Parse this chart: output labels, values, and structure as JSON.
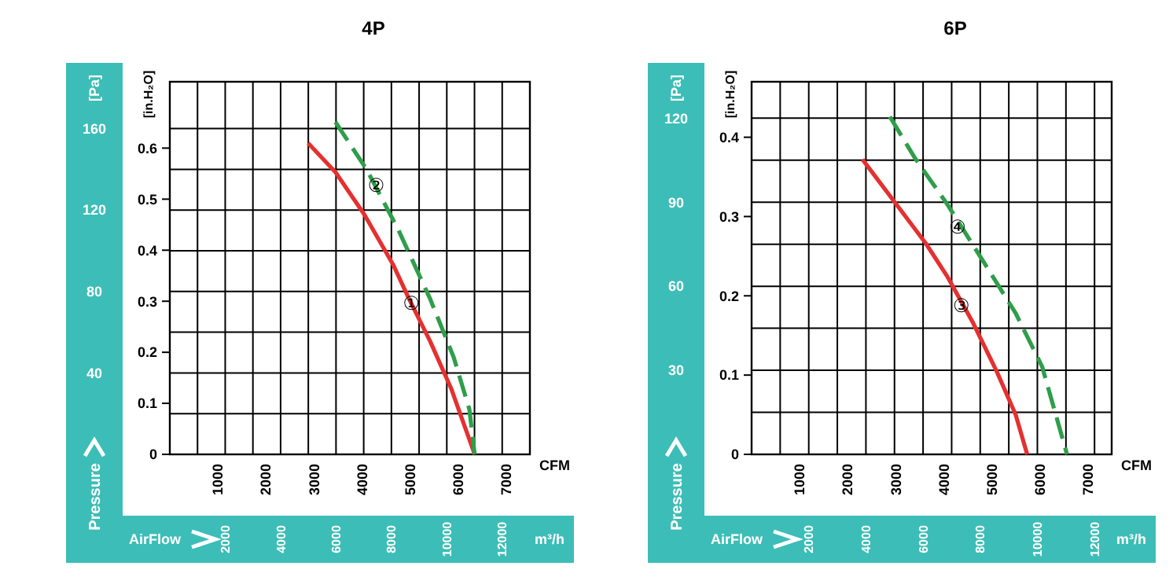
{
  "chart_data": [
    {
      "type": "line",
      "title": "4P",
      "xlabel": "CFM",
      "ylabel": "[in.H₂O]",
      "y2label": "[Pa]",
      "x2label": "m³/h",
      "xlim": [
        0,
        7500
      ],
      "xticks": [
        1000,
        2000,
        3000,
        4000,
        5000,
        6000,
        7000
      ],
      "ylim": [
        0,
        0.73
      ],
      "yticks": [
        0,
        0.1,
        0.2,
        0.3,
        0.4,
        0.5,
        0.6
      ],
      "y2lim": [
        0,
        183
      ],
      "y2ticks": [
        {
          "value": 20,
          "label": null
        },
        40,
        {
          "value": 60,
          "label": null
        },
        80,
        {
          "value": 100,
          "label": null
        },
        120,
        {
          "value": 140,
          "label": null
        },
        160
      ],
      "x2lim": [
        0,
        13000
      ],
      "x2ticks": [
        {
          "value": 1000,
          "label": null
        },
        2000,
        {
          "value": 3000,
          "label": null
        },
        4000,
        {
          "value": 5000,
          "label": null
        },
        6000,
        {
          "value": 7000,
          "label": null
        },
        8000,
        {
          "value": 9000,
          "label": null
        },
        10000,
        {
          "value": 11000,
          "label": null
        },
        12000
      ],
      "grid": true,
      "annotations": [
        "Pressure",
        "AirFlow",
        {
          "text": "①",
          "x": 5030,
          "y": 0.297
        },
        {
          "text": "②",
          "x": 4300,
          "y": 0.527
        }
      ],
      "series": [
        {
          "color": "#e53030",
          "line_style": "solid",
          "x": [
            2880,
            3450,
            4050,
            4650,
            4980,
            5420,
            5860,
            6350
          ],
          "values": [
            0.61,
            0.553,
            0.47,
            0.372,
            0.305,
            0.222,
            0.129,
            0
          ]
        },
        {
          "color": "#2e9e4a",
          "line_style": "dashed",
          "x": [
            3450,
            4100,
            4760,
            5420,
            5910,
            6240,
            6350
          ],
          "values": [
            0.651,
            0.558,
            0.44,
            0.305,
            0.191,
            0.088,
            0
          ]
        }
      ]
    },
    {
      "type": "line",
      "title": "6P",
      "xlabel": "CFM",
      "ylabel": "[in.H₂O]",
      "y2label": "[Pa]",
      "x2label": "m³/h",
      "xlim": [
        0,
        7500
      ],
      "xticks": [
        1000,
        2000,
        3000,
        4000,
        5000,
        6000,
        7000
      ],
      "ylim": [
        0,
        0.47
      ],
      "yticks": [
        0,
        0.1,
        0.2,
        0.3,
        0.4
      ],
      "y2lim": [
        0,
        133
      ],
      "y2ticks": [
        {
          "value": 15,
          "label": null
        },
        30,
        {
          "value": 45,
          "label": null
        },
        60,
        {
          "value": 75,
          "label": null
        },
        90,
        {
          "value": 105,
          "label": null
        },
        120
      ],
      "x2lim": [
        0,
        12600
      ],
      "x2ticks": [
        {
          "value": 1000,
          "label": null
        },
        2000,
        {
          "value": 3000,
          "label": null
        },
        4000,
        {
          "value": 5000,
          "label": null
        },
        6000,
        {
          "value": 7000,
          "label": null
        },
        8000,
        {
          "value": 9000,
          "label": null
        },
        10000,
        {
          "value": 11000,
          "label": null
        },
        12000
      ],
      "grid": true,
      "annotations": [
        "Pressure",
        "AirFlow",
        {
          "text": "④",
          "x": 4290,
          "y": 0.287
        },
        {
          "text": "③",
          "x": 4370,
          "y": 0.188
        }
      ],
      "series": [
        {
          "color": "#e53030",
          "line_style": "solid",
          "x": [
            2310,
            2970,
            3630,
            4070,
            4620,
            5110,
            5500,
            5740
          ],
          "values": [
            0.372,
            0.319,
            0.266,
            0.225,
            0.165,
            0.104,
            0.05,
            0
          ]
        },
        {
          "color": "#2e9e4a",
          "line_style": "dashed",
          "x": [
            2880,
            3410,
            4070,
            4840,
            5500,
            6050,
            6570
          ],
          "values": [
            0.426,
            0.373,
            0.316,
            0.242,
            0.178,
            0.111,
            0
          ]
        }
      ]
    }
  ]
}
